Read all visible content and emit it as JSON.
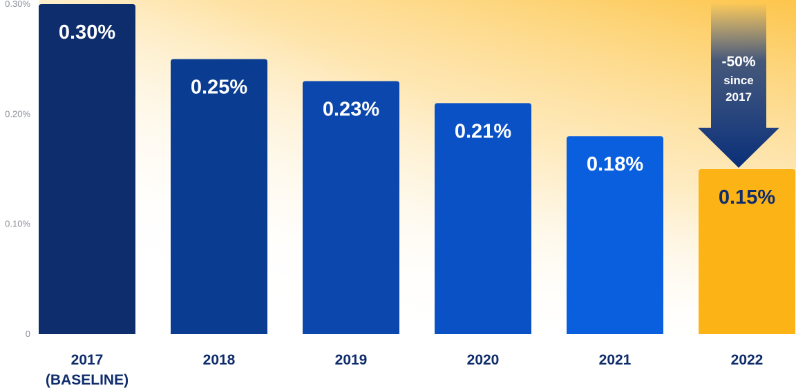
{
  "chart_data": {
    "type": "bar",
    "categories": [
      "2017",
      "2018",
      "2019",
      "2020",
      "2021",
      "2022"
    ],
    "category_sublabels": [
      "(BASELINE)",
      "",
      "",
      "",
      "",
      ""
    ],
    "values": [
      0.3,
      0.25,
      0.23,
      0.21,
      0.18,
      0.15
    ],
    "value_labels": [
      "0.30%",
      "0.25%",
      "0.23%",
      "0.21%",
      "0.18%",
      "0.15%"
    ],
    "ylim": [
      0,
      0.3
    ],
    "yticks": [
      0,
      0.1,
      0.2,
      0.3
    ],
    "ytick_labels": [
      "0",
      "0.10%",
      "0.20%",
      "0.30%"
    ],
    "title": "",
    "xlabel": "",
    "ylabel": "",
    "grid": false,
    "bar_colors": [
      "#0d2d6c",
      "#0a3c91",
      "#0b47ad",
      "#0a51c5",
      "#0a5fde",
      "#fcb315"
    ],
    "value_label_colors": [
      "#ffffff",
      "#ffffff",
      "#ffffff",
      "#ffffff",
      "#ffffff",
      "#0f2d6b"
    ],
    "background_gradient_color": "#fdc54a",
    "annotation": {
      "lines": [
        "-50%",
        "since",
        "2017"
      ],
      "arrow_direction": "down",
      "arrow_color": "#0a2f78"
    }
  }
}
